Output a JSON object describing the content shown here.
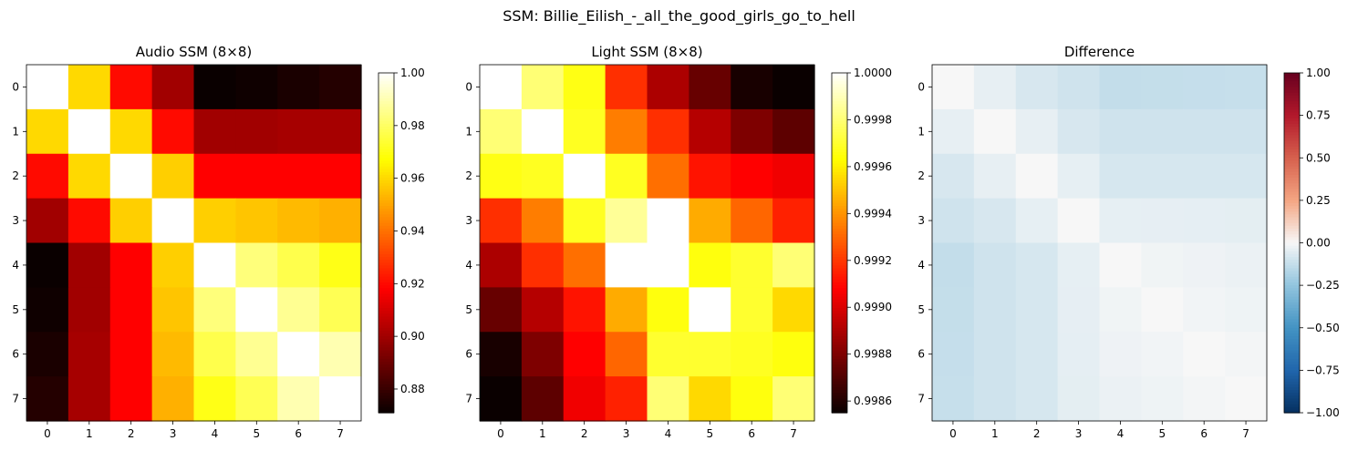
{
  "figure_title": "SSM: Billie_Eilish_-_all_the_good_girls_go_to_hell",
  "chart_data": [
    {
      "type": "heatmap",
      "title": "Audio SSM (8×8)",
      "colormap": "hot",
      "x_ticks": [
        "0",
        "1",
        "2",
        "3",
        "4",
        "5",
        "6",
        "7"
      ],
      "y_ticks": [
        "0",
        "1",
        "2",
        "3",
        "4",
        "5",
        "6",
        "7"
      ],
      "vmin": 0.871,
      "vmax": 1.0,
      "colorbar_ticks": [
        1.0,
        0.98,
        0.96,
        0.94,
        0.92,
        0.9,
        0.88
      ],
      "colorbar_tick_labels": [
        "1.00",
        "0.98",
        "0.96",
        "0.94",
        "0.92",
        "0.90",
        "0.88"
      ],
      "values": [
        [
          1.0,
          0.96,
          0.92,
          0.9,
          0.871,
          0.872,
          0.874,
          0.876
        ],
        [
          0.96,
          1.0,
          0.96,
          0.92,
          0.9,
          0.9,
          0.901,
          0.901
        ],
        [
          0.92,
          0.96,
          1.0,
          0.958,
          0.918,
          0.918,
          0.918,
          0.918
        ],
        [
          0.9,
          0.92,
          0.958,
          1.0,
          0.958,
          0.956,
          0.954,
          0.952
        ],
        [
          0.871,
          0.9,
          0.918,
          0.958,
          1.0,
          0.983,
          0.977,
          0.97
        ],
        [
          0.872,
          0.9,
          0.918,
          0.956,
          0.983,
          1.0,
          0.986,
          0.978
        ],
        [
          0.874,
          0.901,
          0.918,
          0.954,
          0.977,
          0.986,
          1.0,
          0.99
        ],
        [
          0.876,
          0.901,
          0.918,
          0.952,
          0.97,
          0.978,
          0.99,
          1.0
        ]
      ]
    },
    {
      "type": "heatmap",
      "title": "Light SSM (8×8)",
      "colormap": "hot",
      "x_ticks": [
        "0",
        "1",
        "2",
        "3",
        "4",
        "5",
        "6",
        "7"
      ],
      "y_ticks": [
        "0",
        "1",
        "2",
        "3",
        "4",
        "5",
        "6",
        "7"
      ],
      "vmin": 0.99855,
      "vmax": 1.0,
      "colorbar_ticks": [
        1.0,
        0.9998,
        0.9996,
        0.9994,
        0.9992,
        0.999,
        0.9988,
        0.9986
      ],
      "colorbar_tick_labels": [
        "1.0000",
        "0.9998",
        "0.9996",
        "0.9994",
        "0.9992",
        "0.9990",
        "0.9988",
        "0.9986"
      ],
      "values": [
        [
          1.0,
          0.9998,
          0.99966,
          0.99918,
          0.9989,
          0.99875,
          0.99858,
          0.99855
        ],
        [
          0.9998,
          1.0,
          0.99968,
          0.99935,
          0.99918,
          0.99892,
          0.9988,
          0.99873
        ],
        [
          0.99966,
          0.99968,
          1.0,
          0.99968,
          0.99932,
          0.99912,
          0.99908,
          0.99905
        ],
        [
          0.99918,
          0.99935,
          0.99968,
          0.99985,
          1.0,
          0.99945,
          0.9993,
          0.99915
        ],
        [
          0.9989,
          0.99918,
          0.99932,
          1.0,
          1.0,
          0.99965,
          0.9997,
          0.9998
        ],
        [
          0.99875,
          0.99892,
          0.99912,
          0.99945,
          0.99965,
          1.0,
          0.9997,
          0.99955
        ],
        [
          0.99858,
          0.9988,
          0.99908,
          0.9993,
          0.9997,
          0.9997,
          0.99968,
          0.99965
        ],
        [
          0.99855,
          0.99873,
          0.99905,
          0.99915,
          0.9998,
          0.99955,
          0.99965,
          0.9998
        ]
      ]
    },
    {
      "type": "heatmap",
      "title": "Difference",
      "colormap": "RdBu_r",
      "x_ticks": [
        "0",
        "1",
        "2",
        "3",
        "4",
        "5",
        "6",
        "7"
      ],
      "y_ticks": [
        "0",
        "1",
        "2",
        "3",
        "4",
        "5",
        "6",
        "7"
      ],
      "vmin": -1.0,
      "vmax": 1.0,
      "colorbar_ticks": [
        1.0,
        0.75,
        0.5,
        0.25,
        0.0,
        -0.25,
        -0.5,
        -0.75,
        -1.0
      ],
      "colorbar_tick_labels": [
        "1.00",
        "0.75",
        "0.50",
        "0.25",
        "0.00",
        "−0.25",
        "−0.50",
        "−0.75",
        "−1.00"
      ],
      "values": [
        [
          0.0,
          -0.04,
          -0.08,
          -0.1,
          -0.128,
          -0.126,
          -0.124,
          -0.122
        ],
        [
          -0.04,
          0.0,
          -0.04,
          -0.08,
          -0.099,
          -0.099,
          -0.098,
          -0.098
        ],
        [
          -0.08,
          -0.04,
          0.0,
          -0.042,
          -0.081,
          -0.081,
          -0.081,
          -0.081
        ],
        [
          -0.1,
          -0.08,
          -0.042,
          0.0,
          -0.042,
          -0.043,
          -0.045,
          -0.047
        ],
        [
          -0.128,
          -0.099,
          -0.081,
          -0.042,
          0.0,
          -0.017,
          -0.023,
          -0.03
        ],
        [
          -0.126,
          -0.099,
          -0.081,
          -0.043,
          -0.017,
          0.0,
          -0.014,
          -0.022
        ],
        [
          -0.124,
          -0.098,
          -0.081,
          -0.045,
          -0.023,
          -0.014,
          0.0,
          -0.01
        ],
        [
          -0.122,
          -0.098,
          -0.081,
          -0.047,
          -0.03,
          -0.022,
          -0.01,
          0.0
        ]
      ]
    }
  ]
}
